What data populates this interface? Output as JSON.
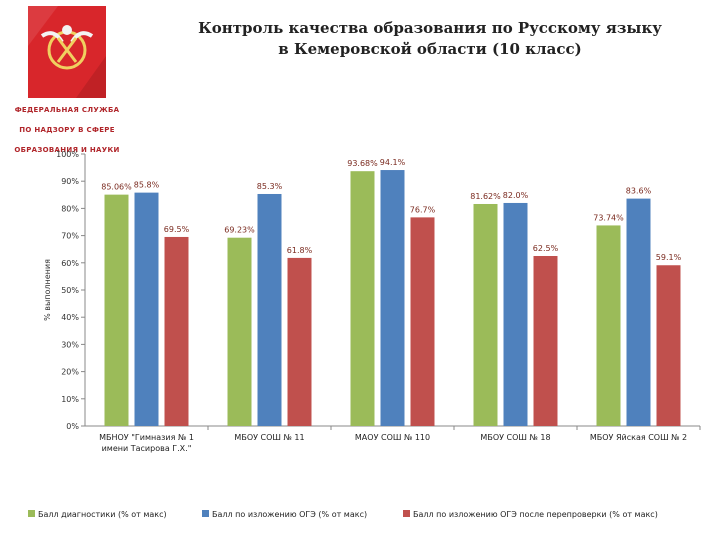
{
  "header": {
    "title_line1": "Контроль качества образования по Русскому языку",
    "title_line2": "в Кемеровской области (10 класс)"
  },
  "logo": {
    "lines": [
      "ФЕДЕРАЛЬНАЯ СЛУЖБА",
      "ПО НАДЗОРУ В СФЕРЕ",
      "ОБРАЗОВАНИЯ И НАУКИ"
    ]
  },
  "colors": {
    "green": "#9bbb59",
    "blue": "#4f81bd",
    "red": "#c0504d"
  },
  "chart_data": {
    "type": "bar",
    "title": "",
    "ylabel": "% выполнения",
    "xlabel": "",
    "ylim": [
      0,
      100
    ],
    "yticks": [
      "0%",
      "10%",
      "20%",
      "30%",
      "40%",
      "50%",
      "60%",
      "70%",
      "80%",
      "90%",
      "100%"
    ],
    "grid": false,
    "legend": "bottom",
    "categories": [
      [
        "МБНОУ \"Гимназия № 1",
        "имени Тасирова Г.Х.\""
      ],
      [
        "МБОУ СОШ № 11"
      ],
      [
        "МАОУ СОШ № 110"
      ],
      [
        "МБОУ СОШ № 18"
      ],
      [
        "МБОУ Яйская СОШ № 2"
      ]
    ],
    "series": [
      {
        "name": "Балл диагностики (% от макс)",
        "color": "#9bbb59",
        "values": [
          85.06,
          69.23,
          93.68,
          81.62,
          73.74
        ],
        "labels": [
          "85.06%",
          "69.23%",
          "93.68%",
          "81.62%",
          "73.74%"
        ]
      },
      {
        "name": "Балл по изложению ОГЭ (% от макс)",
        "color": "#4f81bd",
        "values": [
          85.8,
          85.3,
          94.1,
          82.0,
          83.6
        ],
        "labels": [
          "85.8%",
          "85.3%",
          "94.1%",
          "82.0%",
          "83.6%"
        ]
      },
      {
        "name": "Балл по изложению ОГЭ после перепроверки (% от макс)",
        "color": "#c0504d",
        "values": [
          69.5,
          61.8,
          76.7,
          62.5,
          59.1
        ],
        "labels": [
          "69.5%",
          "61.8%",
          "76.7%",
          "62.5%",
          "59.1%"
        ]
      }
    ]
  }
}
